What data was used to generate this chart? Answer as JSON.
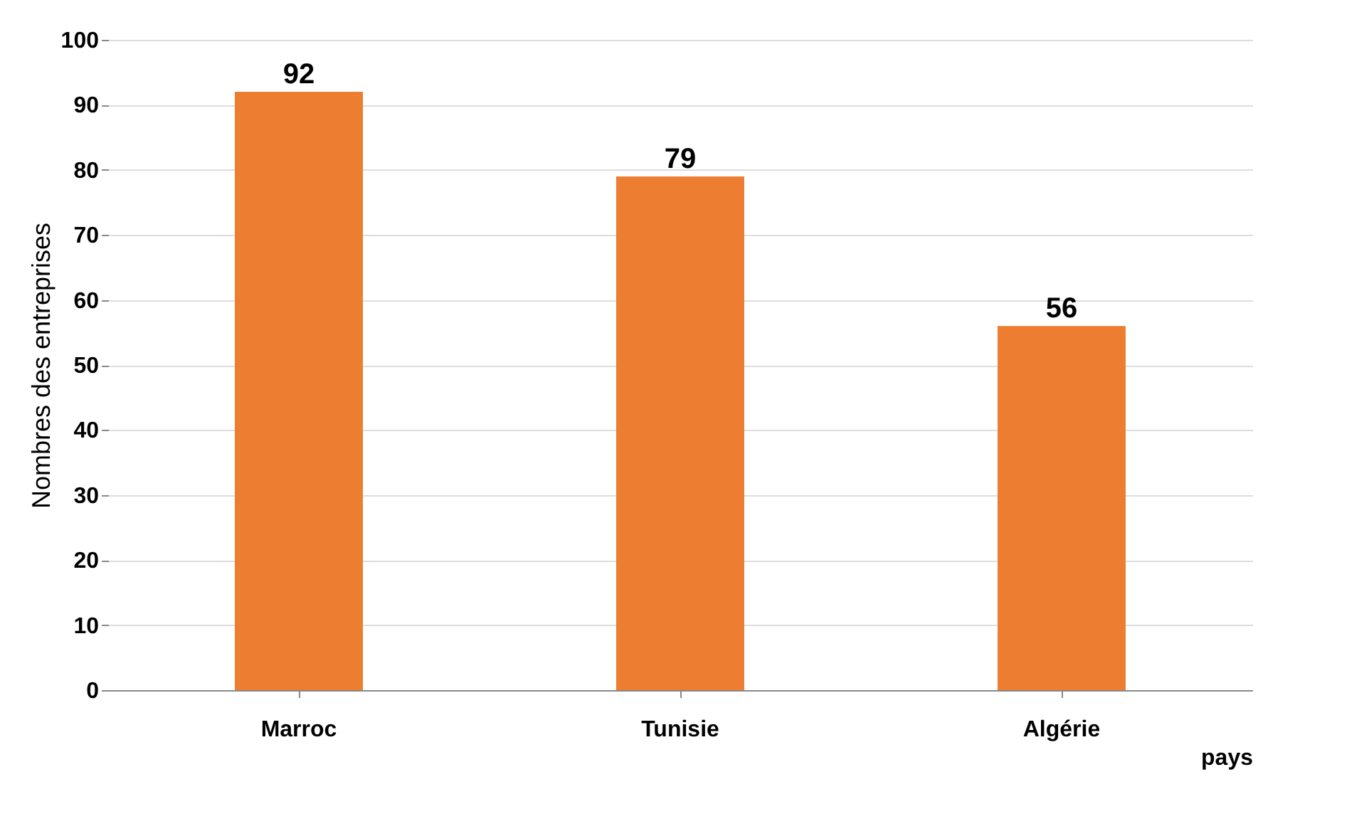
{
  "chart_data": {
    "type": "bar",
    "categories": [
      "Marroc",
      "Tunisie",
      "Algérie"
    ],
    "values": [
      92,
      79,
      56
    ],
    "color": "#ed7d31",
    "xlabel": "pays",
    "ylabel": "Nombres des entreprises",
    "ylim": [
      0,
      100
    ],
    "yticks": [
      0,
      10,
      20,
      30,
      40,
      50,
      60,
      70,
      80,
      90,
      100
    ],
    "grid": "y",
    "data_labels": true
  }
}
